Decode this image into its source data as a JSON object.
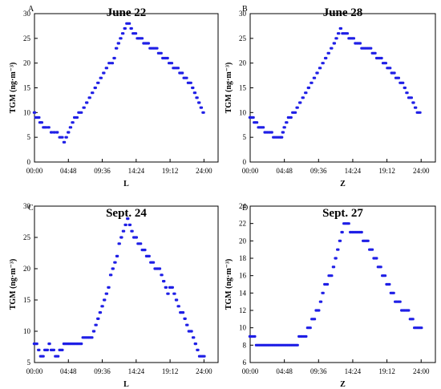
{
  "chart_data": [
    {
      "type": "scatter",
      "panel": "A",
      "title": "June 22",
      "xlabel": "L",
      "ylabel": "TGM (ng·m⁻³)",
      "x_ticks": [
        "00:00",
        "04:48",
        "09:36",
        "14:24",
        "19:12",
        "24:00"
      ],
      "y_ticks": [
        "0",
        "5",
        "10",
        "15",
        "20",
        "25",
        "30"
      ],
      "xlim": [
        0,
        26
      ],
      "ylim": [
        0,
        30
      ],
      "marker_color": "#1f1fe6",
      "series": [
        {
          "x": [
            0.0,
            0.2,
            0.4,
            0.6,
            0.8,
            1.0,
            1.3,
            1.6,
            2.0,
            2.4,
            2.8,
            3.2,
            3.6,
            3.9,
            4.2,
            4.5,
            4.8,
            5.1,
            5.4,
            5.7,
            6.0,
            6.3,
            6.6,
            7.0,
            7.4,
            7.8,
            8.2,
            8.6,
            9.0,
            9.4,
            9.8,
            10.2,
            10.6,
            11.0,
            11.3,
            11.6,
            11.9,
            12.2,
            12.5,
            12.8,
            13.1,
            13.4,
            13.7,
            14.0,
            14.3,
            14.6,
            14.9,
            15.2,
            15.5,
            15.8,
            16.1,
            16.4,
            16.7,
            17.0,
            17.3,
            17.6,
            17.9,
            18.2,
            18.5,
            18.8,
            19.1,
            19.4,
            19.7,
            20.0,
            20.3,
            20.6,
            20.9,
            21.2,
            21.5,
            21.8,
            22.1,
            22.4,
            22.7,
            23.0,
            23.3,
            23.6,
            23.9
          ],
          "y": [
            10,
            9,
            9,
            9,
            8,
            8,
            7,
            7,
            7,
            6,
            6,
            6,
            5,
            5,
            4,
            5,
            6,
            7,
            8,
            9,
            9,
            10,
            10,
            11,
            12,
            13,
            14,
            15,
            16,
            17,
            18,
            19,
            20,
            20,
            21,
            23,
            24,
            25,
            26,
            27,
            28,
            28,
            27,
            26,
            26,
            25,
            25,
            25,
            24,
            24,
            24,
            23,
            23,
            23,
            23,
            22,
            22,
            21,
            21,
            21,
            20,
            20,
            19,
            19,
            19,
            18,
            18,
            17,
            17,
            16,
            16,
            15,
            14,
            13,
            12,
            11,
            10
          ]
        }
      ]
    },
    {
      "type": "scatter",
      "panel": "B",
      "title": "June 28",
      "xlabel": "Z",
      "ylabel": "TGM (ng·m⁻³)",
      "x_ticks": [
        "00:00",
        "04:48",
        "09:36",
        "14:24",
        "19:12",
        "24:00"
      ],
      "y_ticks": [
        "0",
        "5",
        "10",
        "15",
        "20",
        "25",
        "30"
      ],
      "xlim": [
        0,
        26
      ],
      "ylim": [
        0,
        30
      ],
      "marker_color": "#1f1fe6",
      "series": [
        {
          "x": [
            0.0,
            0.2,
            0.4,
            0.6,
            0.9,
            1.2,
            1.5,
            1.8,
            2.1,
            2.4,
            2.7,
            3.0,
            3.3,
            3.6,
            3.9,
            4.2,
            4.4,
            4.6,
            4.8,
            5.1,
            5.4,
            5.7,
            6.0,
            6.3,
            6.6,
            7.0,
            7.4,
            7.8,
            8.2,
            8.6,
            9.0,
            9.4,
            9.8,
            10.2,
            10.6,
            11.0,
            11.4,
            11.8,
            12.1,
            12.4,
            12.7,
            13.0,
            13.3,
            13.6,
            13.9,
            14.2,
            14.5,
            14.8,
            15.1,
            15.4,
            15.7,
            16.0,
            16.3,
            16.6,
            16.9,
            17.2,
            17.5,
            17.8,
            18.1,
            18.4,
            18.7,
            19.0,
            19.3,
            19.6,
            19.9,
            20.2,
            20.5,
            20.8,
            21.1,
            21.4,
            21.7,
            22.0,
            22.3,
            22.6,
            22.9,
            23.2,
            23.5,
            23.8
          ],
          "y": [
            9,
            9,
            9,
            8,
            8,
            7,
            7,
            7,
            6,
            6,
            6,
            6,
            5,
            5,
            5,
            5,
            5,
            6,
            7,
            8,
            9,
            9,
            10,
            10,
            11,
            12,
            13,
            14,
            15,
            16,
            17,
            18,
            19,
            20,
            21,
            22,
            23,
            24,
            25,
            26,
            27,
            26,
            26,
            26,
            25,
            25,
            25,
            24,
            24,
            24,
            23,
            23,
            23,
            23,
            23,
            22,
            22,
            21,
            21,
            21,
            20,
            20,
            19,
            19,
            18,
            18,
            17,
            17,
            16,
            16,
            15,
            14,
            13,
            13,
            12,
            11,
            10,
            10
          ]
        }
      ]
    },
    {
      "type": "scatter",
      "panel": "C",
      "title": "Sept. 24",
      "xlabel": "L",
      "ylabel": "TGM (ng·m⁻³)",
      "x_ticks": [
        "00:00",
        "04:48",
        "09:36",
        "14:24",
        "19:12",
        "24:00"
      ],
      "y_ticks": [
        "5",
        "10",
        "15",
        "20",
        "25",
        "30"
      ],
      "xlim": [
        0,
        26
      ],
      "ylim": [
        5,
        30
      ],
      "marker_color": "#1f1fe6",
      "series": [
        {
          "x": [
            0.0,
            0.3,
            0.6,
            0.9,
            1.2,
            1.5,
            1.8,
            2.1,
            2.4,
            2.7,
            3.0,
            3.3,
            3.6,
            3.9,
            4.2,
            4.5,
            4.8,
            5.1,
            5.4,
            5.7,
            6.0,
            6.3,
            6.6,
            6.9,
            7.2,
            7.5,
            7.8,
            8.1,
            8.4,
            8.7,
            9.0,
            9.3,
            9.6,
            9.9,
            10.2,
            10.5,
            10.8,
            11.1,
            11.4,
            11.7,
            12.0,
            12.3,
            12.6,
            12.9,
            13.2,
            13.5,
            13.8,
            14.1,
            14.4,
            14.7,
            15.0,
            15.3,
            15.6,
            15.9,
            16.2,
            16.5,
            16.8,
            17.1,
            17.4,
            17.7,
            18.0,
            18.3,
            18.6,
            18.9,
            19.2,
            19.5,
            19.8,
            20.1,
            20.4,
            20.7,
            21.0,
            21.3,
            21.6,
            21.9,
            22.2,
            22.5,
            22.8,
            23.1,
            23.4,
            23.7,
            24.0
          ],
          "y": [
            8,
            8,
            7,
            6,
            6,
            7,
            7,
            8,
            7,
            7,
            6,
            6,
            7,
            7,
            8,
            8,
            8,
            8,
            8,
            8,
            8,
            8,
            8,
            9,
            9,
            9,
            9,
            9,
            10,
            11,
            12,
            13,
            14,
            15,
            16,
            17,
            19,
            20,
            21,
            22,
            24,
            25,
            26,
            27,
            28,
            27,
            26,
            25,
            25,
            24,
            24,
            23,
            23,
            22,
            22,
            21,
            21,
            20,
            20,
            20,
            19,
            18,
            17,
            16,
            17,
            17,
            16,
            15,
            14,
            13,
            13,
            12,
            11,
            10,
            10,
            9,
            8,
            7,
            6,
            6,
            6
          ]
        }
      ]
    },
    {
      "type": "scatter",
      "panel": "D",
      "title": "Sept. 27",
      "xlabel": "Z",
      "ylabel": "TGM (ng·m⁻³)",
      "x_ticks": [
        "00:00",
        "04:48",
        "09:36",
        "14:24",
        "19:12",
        "24:00"
      ],
      "y_ticks": [
        "6",
        "8",
        "10",
        "12",
        "14",
        "16",
        "18",
        "20",
        "22",
        "24"
      ],
      "xlim": [
        0,
        26
      ],
      "ylim": [
        6,
        24
      ],
      "marker_color": "#1f1fe6",
      "series": [
        {
          "x": [
            0.0,
            0.3,
            0.6,
            0.9,
            1.2,
            1.5,
            1.8,
            2.1,
            2.4,
            2.7,
            3.0,
            3.3,
            3.6,
            3.9,
            4.2,
            4.5,
            4.8,
            5.1,
            5.4,
            5.7,
            6.0,
            6.3,
            6.6,
            6.9,
            7.2,
            7.5,
            7.8,
            8.1,
            8.4,
            8.7,
            9.0,
            9.3,
            9.6,
            9.9,
            10.2,
            10.5,
            10.8,
            11.1,
            11.4,
            11.7,
            12.0,
            12.3,
            12.6,
            12.9,
            13.2,
            13.5,
            13.8,
            14.1,
            14.4,
            14.7,
            15.0,
            15.3,
            15.6,
            15.9,
            16.2,
            16.5,
            16.8,
            17.1,
            17.4,
            17.7,
            18.0,
            18.3,
            18.6,
            18.9,
            19.2,
            19.5,
            19.8,
            20.1,
            20.4,
            20.7,
            21.0,
            21.3,
            21.6,
            21.9,
            22.2,
            22.5,
            22.8,
            23.1,
            23.4,
            23.7,
            24.0
          ],
          "y": [
            9,
            9,
            9,
            8,
            8,
            8,
            8,
            8,
            8,
            8,
            8,
            8,
            8,
            8,
            8,
            8,
            8,
            8,
            8,
            8,
            8,
            8,
            8,
            9,
            9,
            9,
            9,
            10,
            10,
            11,
            11,
            12,
            12,
            13,
            14,
            15,
            15,
            16,
            16,
            17,
            18,
            19,
            20,
            21,
            22,
            22,
            22,
            21,
            21,
            21,
            21,
            21,
            21,
            20,
            20,
            20,
            19,
            19,
            18,
            18,
            17,
            17,
            16,
            16,
            15,
            15,
            14,
            14,
            13,
            13,
            13,
            12,
            12,
            12,
            12,
            11,
            11,
            10,
            10,
            10,
            10
          ]
        }
      ]
    }
  ]
}
